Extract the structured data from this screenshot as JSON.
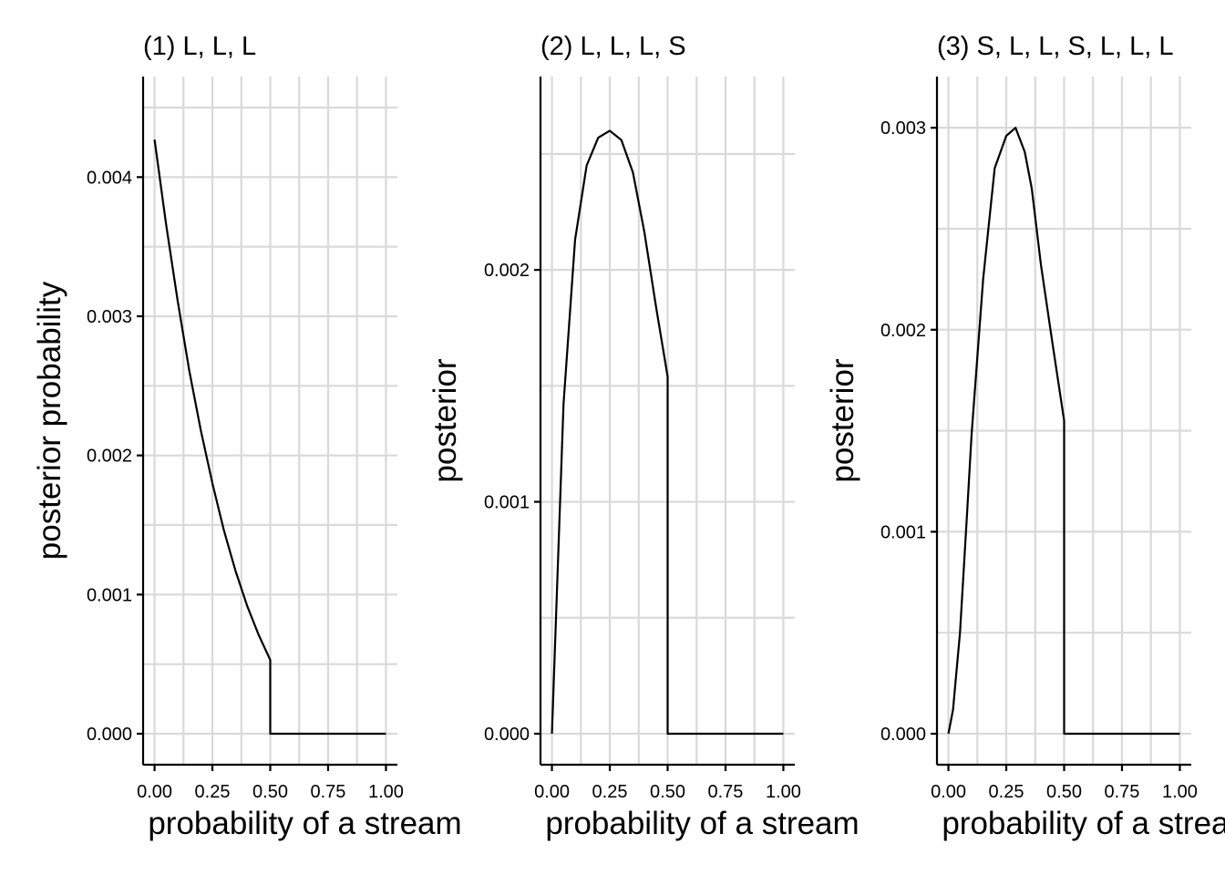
{
  "chart_data": [
    {
      "type": "line",
      "title": "(1) L, L, L",
      "xlabel": "probability of a stream",
      "ylabel": "posterior probability",
      "xlim": [
        0,
        1
      ],
      "ylim": [
        0,
        0.0045
      ],
      "x_ticks": [
        0,
        0.25,
        0.5,
        0.75,
        1
      ],
      "x_tick_labels": [
        "0.00",
        "0.25",
        "0.50",
        "0.75",
        "1.00"
      ],
      "y_ticks": [
        0,
        0.001,
        0.002,
        0.003,
        0.004
      ],
      "y_tick_labels": [
        "0.000",
        "0.001",
        "0.002",
        "0.003",
        "0.004"
      ],
      "grid": true,
      "series": [
        {
          "x": [
            0,
            0.05,
            0.1,
            0.15,
            0.2,
            0.25,
            0.3,
            0.35,
            0.4,
            0.45,
            0.5,
            0.5,
            0.6,
            0.7,
            0.8,
            0.9,
            1.0
          ],
          "y": [
            0.00427,
            0.00366,
            0.00311,
            0.00261,
            0.00218,
            0.0018,
            0.00146,
            0.00117,
            0.00092,
            0.00071,
            0.00053,
            0,
            0,
            0,
            0,
            0,
            0
          ]
        }
      ]
    },
    {
      "type": "line",
      "title": "(2) L, L, L, S",
      "xlabel": "probability of a stream",
      "ylabel": "posterior",
      "xlim": [
        0,
        1
      ],
      "ylim": [
        0,
        0.0027
      ],
      "x_ticks": [
        0,
        0.25,
        0.5,
        0.75,
        1
      ],
      "x_tick_labels": [
        "0.00",
        "0.25",
        "0.50",
        "0.75",
        "1.00"
      ],
      "y_ticks": [
        0,
        0.001,
        0.002
      ],
      "y_tick_labels": [
        "0.000",
        "0.001",
        "0.002"
      ],
      "grid": true,
      "series": [
        {
          "x": [
            0,
            0.05,
            0.1,
            0.15,
            0.2,
            0.25,
            0.3,
            0.35,
            0.4,
            0.45,
            0.5,
            0.5,
            0.6,
            0.7,
            0.8,
            0.9,
            1.0
          ],
          "y": [
            0,
            0.00142,
            0.00213,
            0.00245,
            0.00257,
            0.0026,
            0.00256,
            0.00242,
            0.00216,
            0.00184,
            0.00154,
            0,
            0,
            0,
            0,
            0,
            0
          ]
        }
      ]
    },
    {
      "type": "line",
      "title": "(3) S, L, L, S, L, L, L",
      "xlabel": "probability of a stream",
      "ylabel": "posterior",
      "xlim": [
        0,
        1
      ],
      "ylim": [
        0,
        0.0031
      ],
      "x_ticks": [
        0,
        0.25,
        0.5,
        0.75,
        1
      ],
      "x_tick_labels": [
        "0.00",
        "0.25",
        "0.50",
        "0.75",
        "1.00"
      ],
      "y_ticks": [
        0,
        0.001,
        0.002,
        0.003
      ],
      "y_tick_labels": [
        "0.000",
        "0.001",
        "0.002",
        "0.003"
      ],
      "grid": true,
      "series": [
        {
          "x": [
            0,
            0.02,
            0.05,
            0.08,
            0.1,
            0.15,
            0.2,
            0.25,
            0.29,
            0.33,
            0.36,
            0.4,
            0.45,
            0.5,
            0.5,
            0.6,
            0.7,
            0.8,
            0.9,
            1.0
          ],
          "y": [
            0,
            0.00012,
            0.0005,
            0.00108,
            0.00148,
            0.00225,
            0.0028,
            0.00296,
            0.003,
            0.00288,
            0.0027,
            0.00232,
            0.00193,
            0.00155,
            0,
            0,
            0,
            0,
            0,
            0
          ]
        }
      ]
    }
  ]
}
